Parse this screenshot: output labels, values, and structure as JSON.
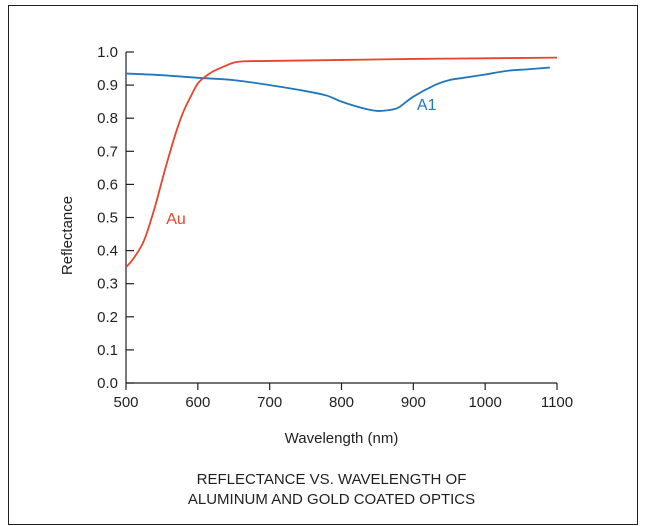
{
  "chart_data": {
    "type": "line",
    "title": "",
    "caption": [
      "REFLECTANCE VS. WAVELENGTH OF",
      "ALUMINUM AND GOLD COATED OPTICS"
    ],
    "xlabel": "Wavelength (nm)",
    "ylabel": "Reflectance",
    "xlim": [
      500,
      1100
    ],
    "ylim": [
      0.0,
      1.0
    ],
    "xticks": [
      500,
      600,
      700,
      800,
      900,
      1000,
      1100
    ],
    "xtick_labels": [
      "500",
      "600",
      "700",
      "800",
      "900",
      "1000",
      "1100"
    ],
    "yticks": [
      0.0,
      0.1,
      0.2,
      0.3,
      0.4,
      0.5,
      0.6,
      0.7,
      0.8,
      0.9,
      1.0
    ],
    "ytick_labels": [
      "0.0",
      "0.1",
      "0.2",
      "0.3",
      "0.4",
      "0.5",
      "0.6",
      "0.7",
      "0.8",
      "0.9",
      "1.0"
    ],
    "grid": false,
    "legend": "none",
    "series": [
      {
        "name": "A1",
        "color": "#1f77bf",
        "label_at": [
          905,
          0.825
        ],
        "x": [
          500,
          550,
          600,
          650,
          700,
          750,
          780,
          800,
          830,
          850,
          870,
          880,
          900,
          930,
          950,
          970,
          1000,
          1030,
          1060,
          1090
        ],
        "y": [
          0.935,
          0.93,
          0.922,
          0.915,
          0.9,
          0.882,
          0.868,
          0.85,
          0.83,
          0.822,
          0.826,
          0.833,
          0.865,
          0.9,
          0.915,
          0.922,
          0.932,
          0.943,
          0.948,
          0.953
        ]
      },
      {
        "name": "Au",
        "color": "#e8442b",
        "label_at": [
          556,
          0.48
        ],
        "x": [
          500,
          510,
          525,
          540,
          555,
          570,
          580,
          590,
          600,
          610,
          620,
          635,
          650,
          665,
          700,
          800,
          900,
          1000,
          1100
        ],
        "y": [
          0.35,
          0.375,
          0.43,
          0.53,
          0.65,
          0.76,
          0.82,
          0.865,
          0.905,
          0.925,
          0.94,
          0.955,
          0.968,
          0.972,
          0.973,
          0.976,
          0.979,
          0.981,
          0.983
        ]
      }
    ]
  }
}
